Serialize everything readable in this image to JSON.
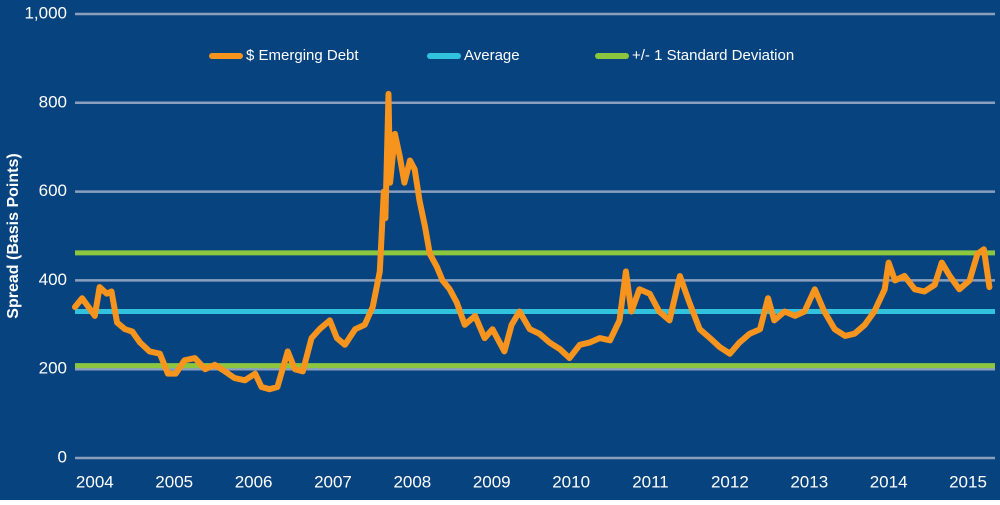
{
  "chart_data": {
    "type": "line",
    "y_label": "Spread (Basis Points)",
    "background": "#07437f",
    "grid": true,
    "grid_color": "#8a9fbd",
    "xlim": [
      2003.75,
      2015.34
    ],
    "xticks": [
      2004,
      2005,
      2006,
      2007,
      2008,
      2009,
      2010,
      2011,
      2012,
      2013,
      2014,
      2015
    ],
    "ylim": [
      0,
      1000
    ],
    "yticks": [
      0,
      200,
      400,
      600,
      800,
      {
        "value": 1000,
        "label": "1,000"
      }
    ],
    "legend": "top",
    "x": [
      2003.75,
      2003.84,
      2003.94,
      2004.0,
      2004.06,
      2004.15,
      2004.21,
      2004.28,
      2004.38,
      2004.47,
      2004.57,
      2004.69,
      2004.82,
      2004.92,
      2005.02,
      2005.13,
      2005.26,
      2005.39,
      2005.51,
      2005.64,
      2005.76,
      2005.89,
      2006.02,
      2006.1,
      2006.2,
      2006.3,
      2006.43,
      2006.52,
      2006.62,
      2006.73,
      2006.83,
      2006.96,
      2007.05,
      2007.15,
      2007.28,
      2007.4,
      2007.5,
      2007.59,
      2007.64,
      2007.66,
      2007.7,
      2007.72,
      2007.78,
      2007.84,
      2007.9,
      2007.97,
      2008.03,
      2008.09,
      2008.16,
      2008.22,
      2008.31,
      2008.38,
      2008.47,
      2008.56,
      2008.66,
      2008.79,
      2008.91,
      2009.01,
      2009.16,
      2009.25,
      2009.35,
      2009.48,
      2009.6,
      2009.73,
      2009.86,
      2009.98,
      2010.11,
      2010.23,
      2010.36,
      2010.49,
      2010.61,
      2010.69,
      2010.76,
      2010.86,
      2010.99,
      2011.11,
      2011.24,
      2011.37,
      2011.49,
      2011.62,
      2011.75,
      2011.87,
      2012.0,
      2012.12,
      2012.25,
      2012.38,
      2012.48,
      2012.56,
      2012.69,
      2012.82,
      2012.94,
      2013.07,
      2013.19,
      2013.32,
      2013.45,
      2013.57,
      2013.7,
      2013.82,
      2013.95,
      2014.0,
      2014.08,
      2014.2,
      2014.33,
      2014.45,
      2014.58,
      2014.67,
      2014.77,
      2014.89,
      2015.02,
      2015.12,
      2015.2,
      2015.27
    ],
    "series": [
      {
        "name": "$ Emerging Debt",
        "color": "#f7941d",
        "values": [
          340,
          360,
          335,
          320,
          385,
          370,
          375,
          305,
          290,
          285,
          260,
          240,
          235,
          190,
          190,
          220,
          225,
          200,
          210,
          195,
          180,
          175,
          190,
          160,
          155,
          160,
          240,
          200,
          195,
          270,
          290,
          310,
          270,
          255,
          290,
          300,
          340,
          420,
          600,
          540,
          820,
          620,
          730,
          680,
          620,
          670,
          650,
          580,
          520,
          460,
          430,
          400,
          380,
          350,
          300,
          320,
          270,
          290,
          240,
          300,
          330,
          290,
          280,
          260,
          245,
          225,
          255,
          260,
          270,
          265,
          310,
          420,
          330,
          380,
          370,
          330,
          310,
          410,
          350,
          290,
          270,
          250,
          235,
          260,
          280,
          290,
          360,
          310,
          330,
          320,
          330,
          380,
          330,
          290,
          275,
          280,
          300,
          330,
          380,
          440,
          400,
          410,
          380,
          375,
          390,
          440,
          410,
          380,
          400,
          460,
          470,
          385
        ]
      }
    ],
    "reference_lines": [
      {
        "name": "Average",
        "color": "#31c3de",
        "values": [
          330
        ]
      },
      {
        "name": "+/- 1 Standard Deviation",
        "color": "#8cc63f",
        "values": [
          208,
          462
        ]
      }
    ]
  }
}
